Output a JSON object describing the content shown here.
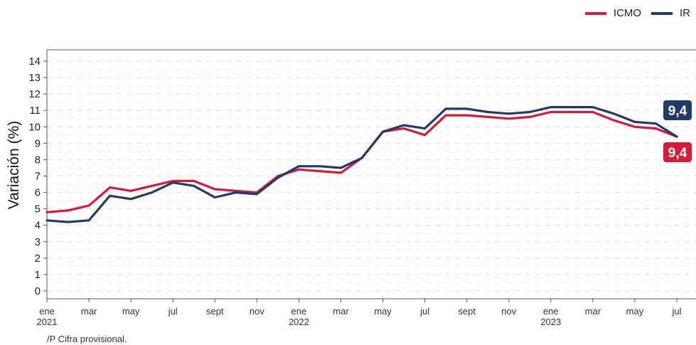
{
  "legend": {
    "icmo_label": "ICMO",
    "ir_label": "IR"
  },
  "colors": {
    "icmo": "#d7193a",
    "ir": "#213a6c"
  },
  "footnote": "/P Cifra provisional.",
  "chart_data": {
    "type": "line",
    "ylabel": "Variación (%)",
    "xlabel": "",
    "ylim": [
      0,
      14
    ],
    "yticks": [
      0,
      1,
      2,
      3,
      4,
      5,
      6,
      7,
      8,
      9,
      10,
      11,
      12,
      13,
      14
    ],
    "grid": true,
    "legend_position": "top-right",
    "x": [
      "2021-01",
      "2021-02",
      "2021-03",
      "2021-04",
      "2021-05",
      "2021-06",
      "2021-07",
      "2021-08",
      "2021-09",
      "2021-10",
      "2021-11",
      "2021-12",
      "2022-01",
      "2022-02",
      "2022-03",
      "2022-04",
      "2022-05",
      "2022-06",
      "2022-07",
      "2022-08",
      "2022-09",
      "2022-10",
      "2022-11",
      "2022-12",
      "2023-01",
      "2023-02",
      "2023-03",
      "2023-04",
      "2023-05",
      "2023-06",
      "2023-07"
    ],
    "xtick_labels": [
      {
        "x": "2021-01",
        "label": "ene",
        "year": "2021"
      },
      {
        "x": "2021-03",
        "label": "mar",
        "year": ""
      },
      {
        "x": "2021-05",
        "label": "may",
        "year": ""
      },
      {
        "x": "2021-07",
        "label": "jul",
        "year": ""
      },
      {
        "x": "2021-09",
        "label": "sept",
        "year": ""
      },
      {
        "x": "2021-11",
        "label": "nov",
        "year": ""
      },
      {
        "x": "2022-01",
        "label": "ene",
        "year": "2022"
      },
      {
        "x": "2022-03",
        "label": "mar",
        "year": ""
      },
      {
        "x": "2022-05",
        "label": "may",
        "year": ""
      },
      {
        "x": "2022-07",
        "label": "jul",
        "year": ""
      },
      {
        "x": "2022-09",
        "label": "sept",
        "year": ""
      },
      {
        "x": "2022-11",
        "label": "nov",
        "year": ""
      },
      {
        "x": "2023-01",
        "label": "ene",
        "year": "2023"
      },
      {
        "x": "2023-03",
        "label": "mar",
        "year": ""
      },
      {
        "x": "2023-05",
        "label": "may",
        "year": ""
      },
      {
        "x": "2023-07",
        "label": "jul",
        "year": ""
      }
    ],
    "series": [
      {
        "name": "ICMO",
        "color": "#d7193a",
        "end_label": "9,4",
        "values": [
          4.8,
          4.9,
          5.2,
          6.3,
          6.1,
          6.4,
          6.7,
          6.7,
          6.2,
          6.1,
          6.0,
          7.0,
          7.4,
          7.3,
          7.2,
          8.1,
          9.7,
          9.9,
          9.5,
          10.7,
          10.7,
          10.6,
          10.5,
          10.6,
          10.9,
          10.9,
          10.9,
          10.4,
          10.0,
          9.9,
          9.4
        ]
      },
      {
        "name": "IR",
        "color": "#213a6c",
        "end_label": "9,4",
        "values": [
          4.3,
          4.2,
          4.3,
          5.8,
          5.6,
          6.0,
          6.6,
          6.4,
          5.7,
          6.0,
          5.9,
          6.9,
          7.6,
          7.6,
          7.5,
          8.1,
          9.7,
          10.1,
          9.9,
          11.1,
          11.1,
          10.9,
          10.8,
          10.9,
          11.2,
          11.2,
          11.2,
          10.8,
          10.3,
          10.2,
          9.4
        ]
      }
    ]
  }
}
